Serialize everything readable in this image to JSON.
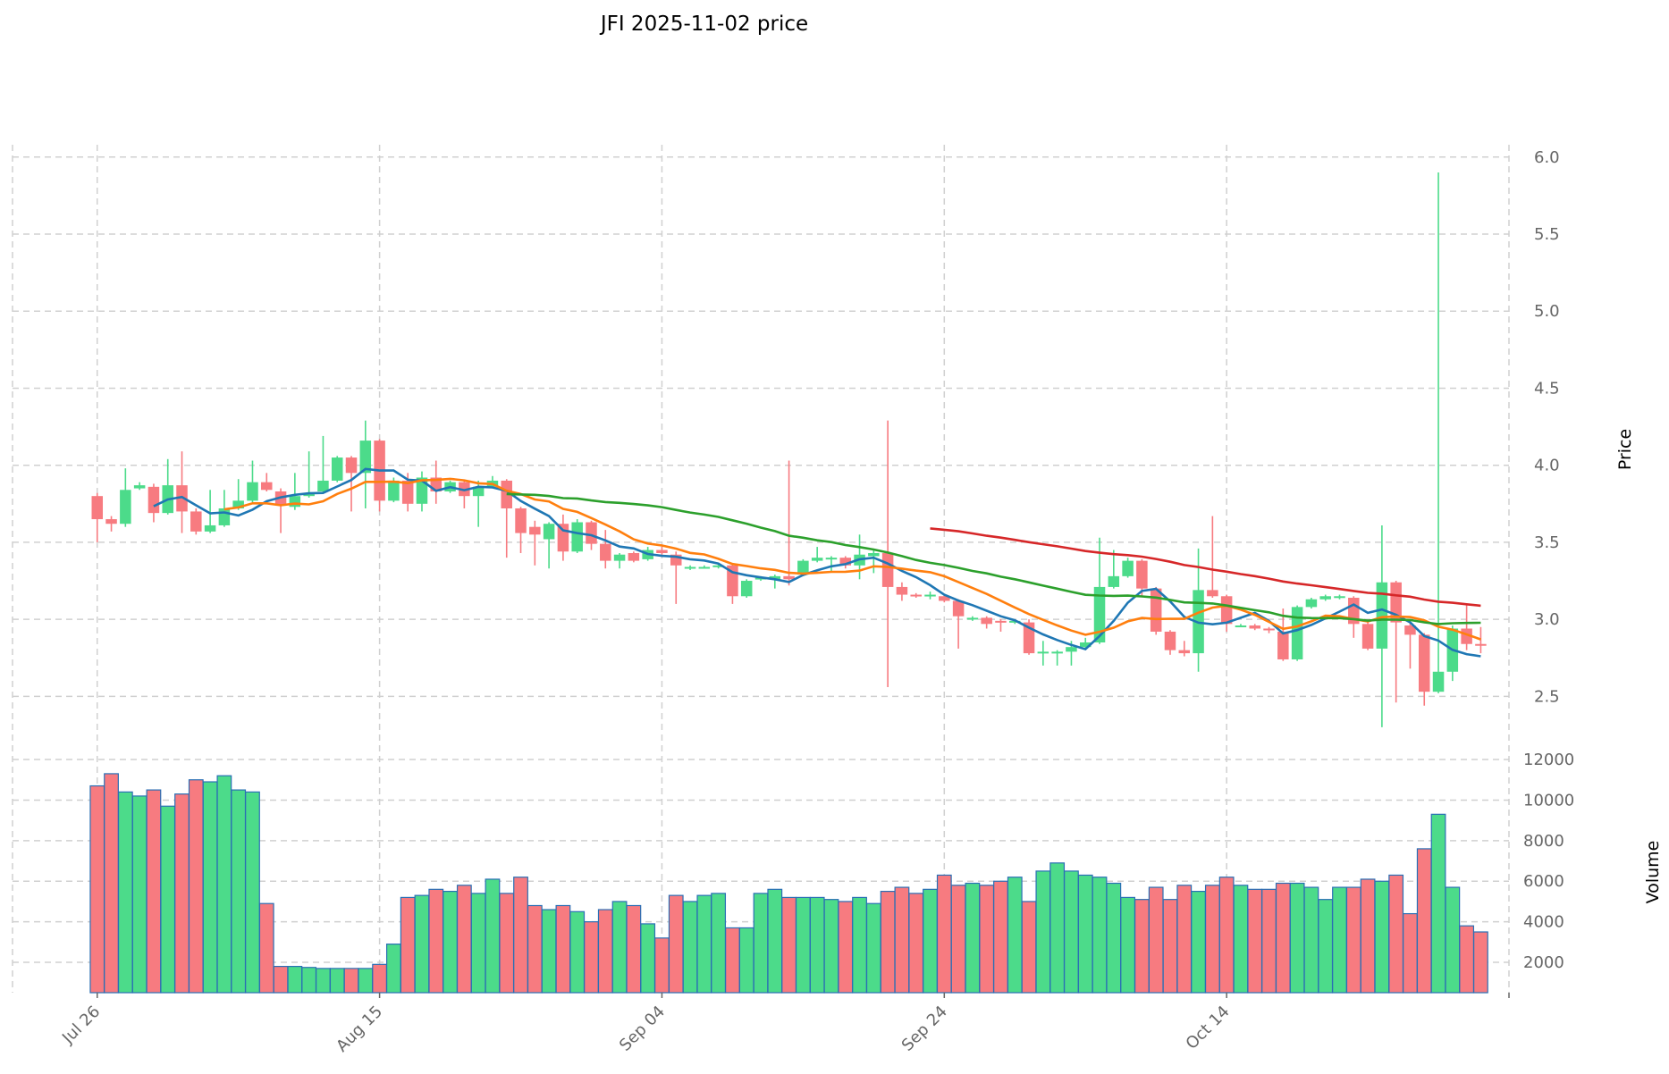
{
  "chart_data": {
    "type": "candlestick",
    "title": "JFI  2025-11-02  price",
    "ylabel_price": "Price",
    "ylabel_volume": "Volume",
    "start_date": "2025-07-26",
    "x_tick_labels": [
      "Jul 26",
      "Aug 15",
      "Sep 04",
      "Sep 24",
      "Oct 14"
    ],
    "x_tick_days": [
      0,
      20,
      40,
      60,
      80
    ],
    "price_ticks": [
      2.5,
      3.0,
      3.5,
      4.0,
      4.5,
      5.0,
      5.5,
      6.0
    ],
    "price_tick_labels": [
      "2.5",
      "3.0",
      "3.5",
      "4.0",
      "4.5",
      "5.0",
      "5.5",
      "6.0"
    ],
    "price_ylim": [
      2.16,
      6.08
    ],
    "volume_ticks": [
      2000,
      4000,
      6000,
      8000,
      10000,
      12000
    ],
    "volume_tick_labels": [
      "2000",
      "4000",
      "6000",
      "8000",
      "10000",
      "12000"
    ],
    "volume_ylim": [
      505,
      12530
    ],
    "xlim": [
      -6,
      100
    ],
    "grid": true,
    "colors": {
      "up": "#4cdb8a",
      "down": "#f77b80",
      "volume_edge": "#2a6fb5",
      "ma5": "#1f77b4",
      "ma10": "#ff7f0e",
      "ma30": "#2ca02c",
      "ma60": "#d62728"
    },
    "moving_averages": [
      5,
      10,
      30,
      60
    ],
    "ohlc": [
      [
        3.8,
        3.82,
        3.5,
        3.65
      ],
      [
        3.65,
        3.67,
        3.57,
        3.62
      ],
      [
        3.62,
        3.98,
        3.6,
        3.84
      ],
      [
        3.85,
        3.89,
        3.84,
        3.87
      ],
      [
        3.86,
        3.88,
        3.63,
        3.69
      ],
      [
        3.69,
        4.04,
        3.68,
        3.87
      ],
      [
        3.87,
        4.09,
        3.56,
        3.7
      ],
      [
        3.7,
        3.72,
        3.55,
        3.57
      ],
      [
        3.57,
        3.84,
        3.56,
        3.61
      ],
      [
        3.61,
        3.84,
        3.6,
        3.72
      ],
      [
        3.72,
        3.91,
        3.71,
        3.77
      ],
      [
        3.77,
        4.03,
        3.76,
        3.89
      ],
      [
        3.89,
        3.95,
        3.83,
        3.84
      ],
      [
        3.83,
        3.85,
        3.56,
        3.74
      ],
      [
        3.73,
        3.95,
        3.71,
        3.8
      ],
      [
        3.8,
        4.09,
        3.79,
        3.82
      ],
      [
        3.83,
        4.19,
        3.82,
        3.9
      ],
      [
        3.9,
        4.06,
        3.89,
        4.05
      ],
      [
        4.05,
        4.06,
        3.7,
        3.95
      ],
      [
        3.95,
        4.29,
        3.72,
        4.16
      ],
      [
        4.16,
        4.17,
        3.7,
        3.77
      ],
      [
        3.77,
        3.92,
        3.76,
        3.9
      ],
      [
        3.9,
        3.95,
        3.7,
        3.75
      ],
      [
        3.75,
        3.96,
        3.7,
        3.92
      ],
      [
        3.92,
        4.03,
        3.75,
        3.83
      ],
      [
        3.83,
        3.9,
        3.82,
        3.89
      ],
      [
        3.89,
        3.9,
        3.72,
        3.8
      ],
      [
        3.8,
        3.9,
        3.6,
        3.86
      ],
      [
        3.86,
        3.93,
        3.85,
        3.9
      ],
      [
        3.9,
        3.91,
        3.4,
        3.72
      ],
      [
        3.72,
        3.73,
        3.43,
        3.56
      ],
      [
        3.6,
        3.64,
        3.35,
        3.55
      ],
      [
        3.52,
        3.63,
        3.33,
        3.62
      ],
      [
        3.62,
        3.68,
        3.38,
        3.44
      ],
      [
        3.44,
        3.65,
        3.43,
        3.63
      ],
      [
        3.63,
        3.64,
        3.45,
        3.49
      ],
      [
        3.49,
        3.58,
        3.33,
        3.38
      ],
      [
        3.38,
        3.43,
        3.33,
        3.42
      ],
      [
        3.43,
        3.44,
        3.37,
        3.38
      ],
      [
        3.39,
        3.47,
        3.38,
        3.45
      ],
      [
        3.45,
        3.47,
        3.42,
        3.43
      ],
      [
        3.42,
        3.44,
        3.1,
        3.35
      ],
      [
        3.33,
        3.35,
        3.32,
        3.34
      ],
      [
        3.34,
        3.35,
        3.33,
        3.34
      ],
      [
        3.34,
        3.36,
        3.33,
        3.35
      ],
      [
        3.35,
        3.36,
        3.1,
        3.15
      ],
      [
        3.15,
        3.26,
        3.14,
        3.25
      ],
      [
        3.26,
        3.28,
        3.25,
        3.27
      ],
      [
        3.26,
        3.29,
        3.2,
        3.28
      ],
      [
        3.28,
        4.03,
        3.22,
        3.26
      ],
      [
        3.29,
        3.39,
        3.28,
        3.38
      ],
      [
        3.38,
        3.47,
        3.37,
        3.4
      ],
      [
        3.39,
        3.41,
        3.31,
        3.4
      ],
      [
        3.4,
        3.41,
        3.33,
        3.35
      ],
      [
        3.35,
        3.55,
        3.26,
        3.42
      ],
      [
        3.41,
        3.45,
        3.3,
        3.43
      ],
      [
        3.43,
        4.29,
        2.56,
        3.21
      ],
      [
        3.21,
        3.24,
        3.12,
        3.16
      ],
      [
        3.16,
        3.17,
        3.14,
        3.15
      ],
      [
        3.15,
        3.18,
        3.13,
        3.16
      ],
      [
        3.15,
        3.16,
        3.11,
        3.12
      ],
      [
        3.12,
        3.13,
        2.81,
        3.02
      ],
      [
        3.0,
        3.02,
        2.99,
        3.01
      ],
      [
        3.01,
        3.02,
        2.94,
        2.97
      ],
      [
        2.99,
        3.0,
        2.92,
        2.98
      ],
      [
        2.98,
        3.0,
        2.97,
        2.99
      ],
      [
        2.98,
        3.0,
        2.77,
        2.78
      ],
      [
        2.78,
        2.86,
        2.7,
        2.79
      ],
      [
        2.79,
        2.8,
        2.7,
        2.79
      ],
      [
        2.79,
        2.86,
        2.7,
        2.82
      ],
      [
        2.82,
        2.88,
        2.81,
        2.85
      ],
      [
        2.85,
        3.53,
        2.84,
        3.21
      ],
      [
        3.21,
        3.45,
        3.2,
        3.28
      ],
      [
        3.28,
        3.4,
        3.27,
        3.38
      ],
      [
        3.38,
        3.39,
        3.15,
        3.2
      ],
      [
        3.2,
        3.21,
        2.9,
        2.92
      ],
      [
        2.92,
        2.93,
        2.77,
        2.8
      ],
      [
        2.8,
        2.86,
        2.76,
        2.78
      ],
      [
        2.78,
        3.46,
        2.66,
        3.19
      ],
      [
        3.19,
        3.67,
        3.14,
        3.15
      ],
      [
        3.15,
        3.16,
        2.92,
        2.97
      ],
      [
        2.96,
        2.97,
        2.95,
        2.96
      ],
      [
        2.96,
        2.97,
        2.93,
        2.94
      ],
      [
        2.94,
        2.95,
        2.91,
        2.93
      ],
      [
        2.92,
        3.07,
        2.73,
        2.74
      ],
      [
        2.74,
        3.09,
        2.73,
        3.08
      ],
      [
        3.08,
        3.14,
        3.07,
        3.13
      ],
      [
        3.13,
        3.16,
        3.12,
        3.15
      ],
      [
        3.14,
        3.16,
        3.13,
        3.15
      ],
      [
        3.14,
        3.15,
        2.88,
        2.97
      ],
      [
        2.97,
        3.0,
        2.8,
        2.81
      ],
      [
        2.81,
        3.61,
        2.3,
        3.24
      ],
      [
        3.24,
        3.25,
        2.46,
        2.98
      ],
      [
        2.96,
        2.99,
        2.68,
        2.9
      ],
      [
        2.9,
        2.91,
        2.44,
        2.53
      ],
      [
        2.53,
        5.9,
        2.52,
        2.66
      ],
      [
        2.66,
        2.96,
        2.6,
        2.94
      ],
      [
        2.94,
        3.1,
        2.8,
        2.84
      ],
      [
        2.84,
        2.95,
        2.78,
        2.83
      ]
    ],
    "volume": [
      10700,
      11300,
      10400,
      10200,
      10500,
      9700,
      10300,
      11000,
      10900,
      11200,
      10500,
      10400,
      4900,
      1800,
      1800,
      1750,
      1700,
      1700,
      1700,
      1700,
      1900,
      2900,
      5200,
      5300,
      5600,
      5500,
      5800,
      5400,
      6100,
      5400,
      6200,
      4800,
      4600,
      4800,
      4500,
      4000,
      4600,
      5000,
      4800,
      3900,
      3200,
      5300,
      5000,
      5300,
      5400,
      3700,
      3700,
      5400,
      5600,
      5200,
      5200,
      5200,
      5100,
      5000,
      5200,
      4900,
      5500,
      5700,
      5400,
      5600,
      6300,
      5800,
      5900,
      5800,
      6000,
      6200,
      5000,
      6500,
      6900,
      6500,
      6300,
      6200,
      5900,
      5200,
      5100,
      5700,
      5100,
      5800,
      5500,
      5800,
      6200,
      5800,
      5600,
      5600,
      5900,
      5900,
      5700,
      5100,
      5700,
      5700,
      6100,
      6000,
      6300,
      4400,
      7600,
      9300,
      5700,
      3800,
      3500
    ]
  }
}
